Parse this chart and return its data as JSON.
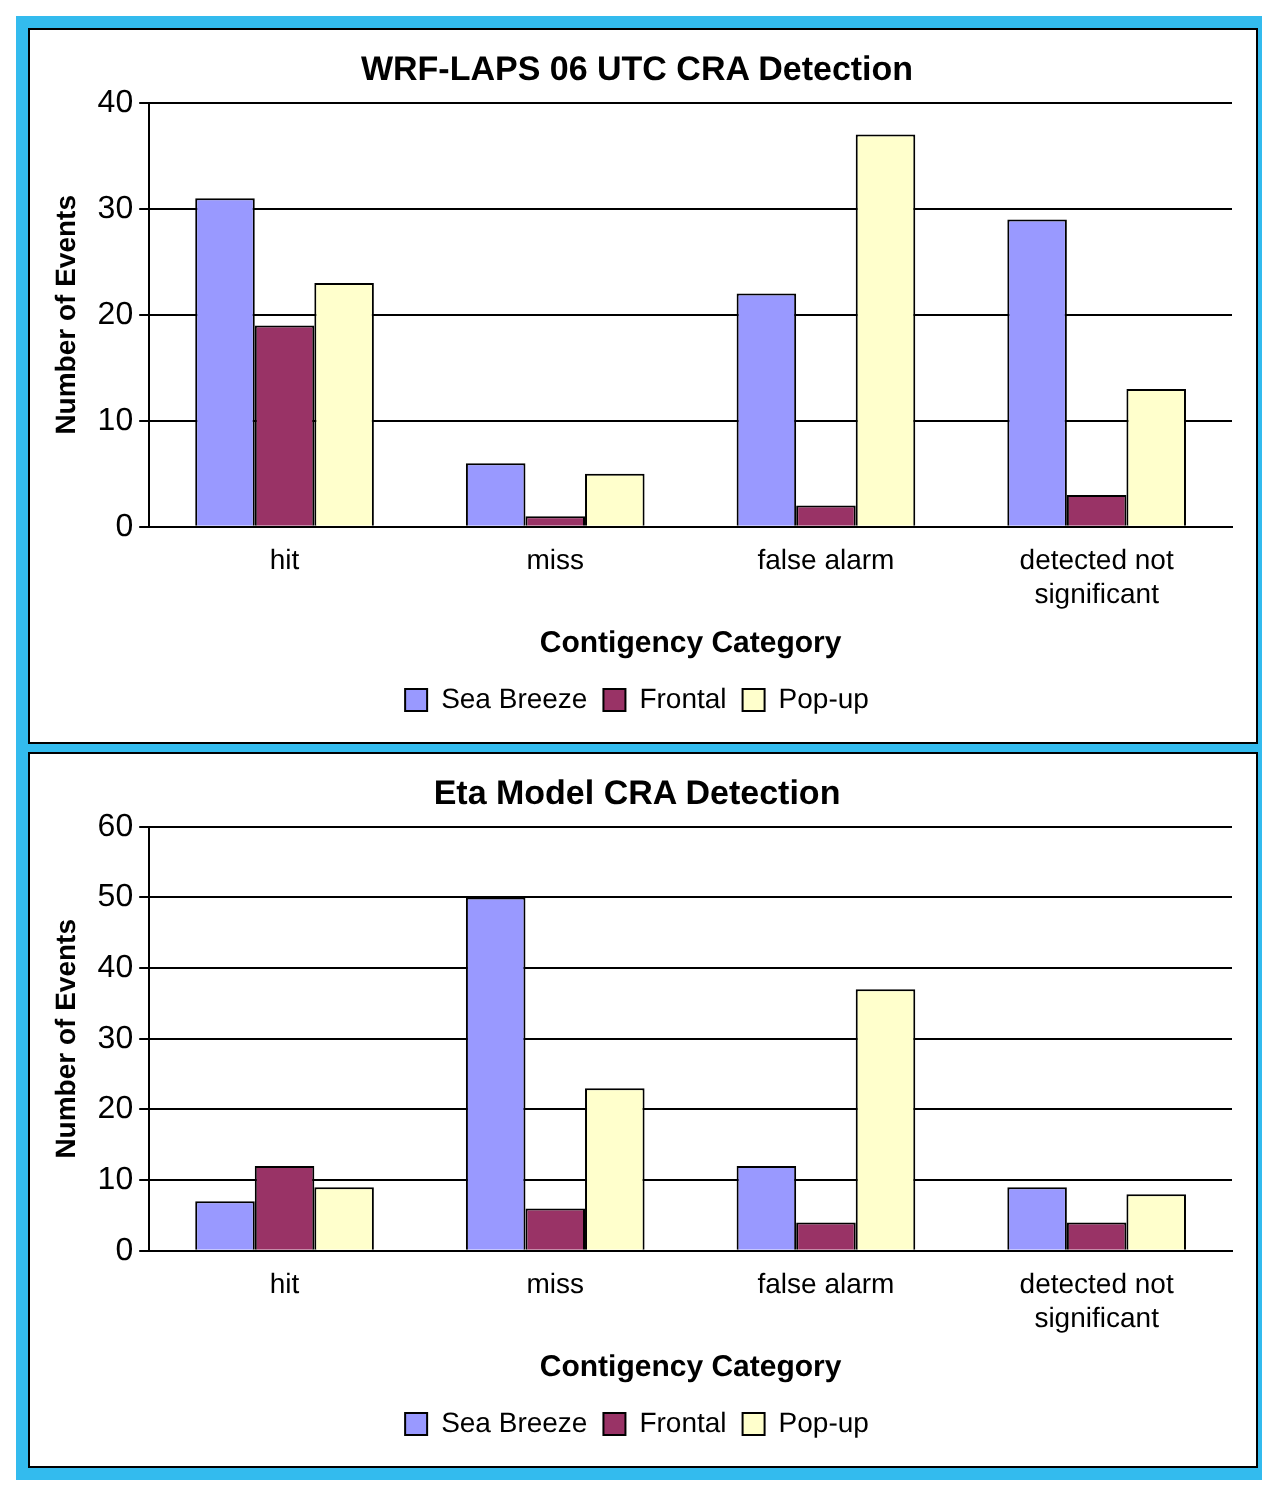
{
  "chart_data": [
    {
      "type": "bar",
      "title": "WRF-LAPS 06 UTC CRA Detection",
      "xlabel": "Contigency Category",
      "ylabel": "Number of Events",
      "categories": [
        "hit",
        "miss",
        "false alarm",
        "detected not significant"
      ],
      "series": [
        {
          "name": "Sea Breeze",
          "color": "#9999ff",
          "values": [
            31,
            6,
            22,
            29
          ]
        },
        {
          "name": "Frontal",
          "color": "#993366",
          "values": [
            19,
            1,
            2,
            3
          ]
        },
        {
          "name": "Pop-up",
          "color": "#ffffcc",
          "values": [
            23,
            5,
            37,
            13
          ]
        }
      ],
      "ylim": [
        0,
        40
      ],
      "yticks": [
        0,
        10,
        20,
        30,
        40
      ],
      "grid": "y",
      "legend": "bottom"
    },
    {
      "type": "bar",
      "title": "Eta Model CRA Detection",
      "xlabel": "Contigency Category",
      "ylabel": "Number of Events",
      "categories": [
        "hit",
        "miss",
        "false alarm",
        "detected not significant"
      ],
      "series": [
        {
          "name": "Sea Breeze",
          "color": "#9999ff",
          "values": [
            7,
            50,
            12,
            9
          ]
        },
        {
          "name": "Frontal",
          "color": "#993366",
          "values": [
            12,
            6,
            4,
            4
          ]
        },
        {
          "name": "Pop-up",
          "color": "#ffffcc",
          "values": [
            9,
            23,
            37,
            8
          ]
        }
      ],
      "ylim": [
        0,
        60
      ],
      "yticks": [
        0,
        10,
        20,
        30,
        40,
        50,
        60
      ],
      "grid": "y",
      "legend": "bottom"
    }
  ]
}
